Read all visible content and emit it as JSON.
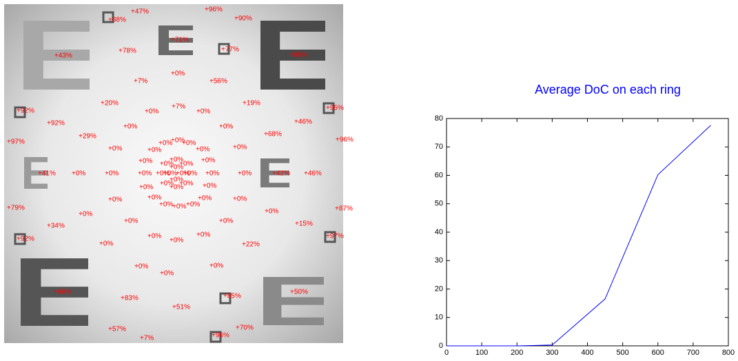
{
  "image": {
    "labels": [
      "+47%",
      "+96%",
      "+88%",
      "+90%",
      "+71%",
      "+78%",
      "+77%",
      "+43%",
      "+85%",
      "+0%",
      "+7%",
      "+56%",
      "+20%",
      "+7%",
      "+0%",
      "+0%",
      "+19%",
      "+92%",
      "+95%",
      "+92%",
      "+46%",
      "+0%",
      "+0%",
      "+68%",
      "+29%",
      "+97%",
      "+96%",
      "+0%",
      "+0%",
      "+0%",
      "+0%",
      "+0%",
      "+0%",
      "+0%",
      "+0%",
      "+0%",
      "+41%",
      "+0%",
      "+0%",
      "+0%",
      "+0%",
      "+0%",
      "+42%",
      "+46%",
      "+0%",
      "+0%",
      "+0%",
      "+0%",
      "+0%",
      "+0%",
      "+0%",
      "+0%",
      "+0%",
      "+79%",
      "+87%",
      "+0%",
      "+0%",
      "+0%",
      "+0%",
      "+34%",
      "+15%",
      "+92%",
      "+97%",
      "+0%",
      "+0%",
      "+0%",
      "+0%",
      "+22%",
      "+0%",
      "+0%",
      "+0%",
      "+66%",
      "+83%",
      "+85%",
      "+50%",
      "+51%",
      "+57%",
      "+70%",
      "+7%",
      "+96%",
      "+0%",
      "+0%",
      "+0%",
      "+0%",
      "+0%",
      "+0%",
      "+0%",
      "+0%",
      "+0%",
      "+0%",
      "+0%",
      "+0%"
    ]
  },
  "chart_data": {
    "type": "line",
    "title": "Average DoC on each ring",
    "x": [
      0,
      100,
      200,
      300,
      450,
      600,
      750
    ],
    "values": [
      0,
      0,
      0,
      0.3,
      16.5,
      60.2,
      77.6
    ],
    "color": "#0000ff",
    "xlim": [
      0,
      800
    ],
    "xticks": [
      0,
      100,
      200,
      300,
      400,
      500,
      600,
      700,
      800
    ],
    "ylim": [
      0,
      80
    ],
    "yticks": [
      0,
      10,
      20,
      30,
      40,
      50,
      60,
      70,
      80
    ]
  }
}
